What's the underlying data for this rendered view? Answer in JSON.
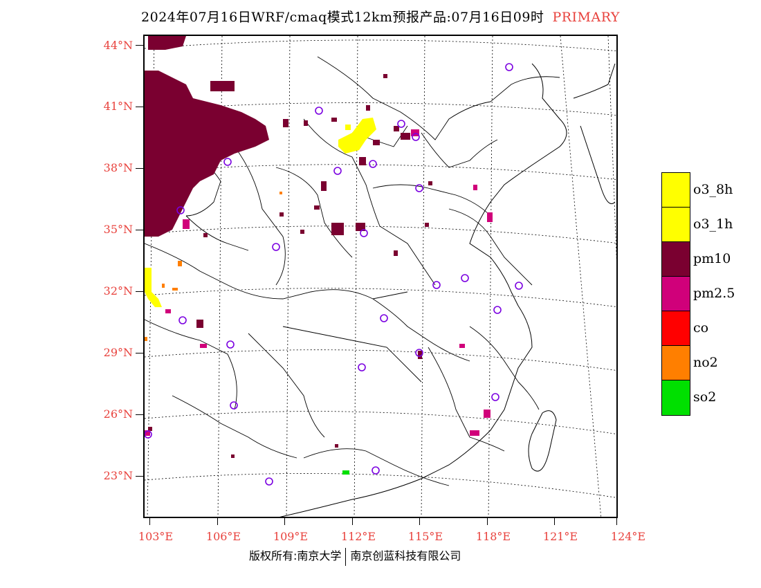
{
  "title": {
    "main": "2024年07月16日WRF/cmaq模式12km预报产品:07月16日09时",
    "tag": "PRIMARY"
  },
  "map": {
    "lat_labels": [
      "44°N",
      "41°N",
      "38°N",
      "35°N",
      "32°N",
      "29°N",
      "26°N",
      "23°N"
    ],
    "lon_labels": [
      "103°E",
      "106°E",
      "109°E",
      "112°E",
      "115°E",
      "118°E",
      "121°E",
      "124°E"
    ],
    "colors": {
      "o3_8h": "#ffff00",
      "o3_1h": "#ffff00",
      "pm10": "#7a0030",
      "pm25": "#d0007a",
      "co": "#ff0000",
      "no2": "#ff7f00",
      "so2": "#00e000",
      "station": "#7a00e0"
    }
  },
  "legend": {
    "items": [
      {
        "label": "o3_8h",
        "color": "#ffff00"
      },
      {
        "label": "o3_1h",
        "color": "#ffff00"
      },
      {
        "label": "pm10",
        "color": "#7a0030"
      },
      {
        "label": "pm2.5",
        "color": "#d0007a"
      },
      {
        "label": "co",
        "color": "#ff0000"
      },
      {
        "label": "no2",
        "color": "#ff7f00"
      },
      {
        "label": "so2",
        "color": "#00e000"
      }
    ]
  },
  "footer": {
    "left": "版权所有:南京大学",
    "right": "南京创蓝科技有限公司"
  }
}
